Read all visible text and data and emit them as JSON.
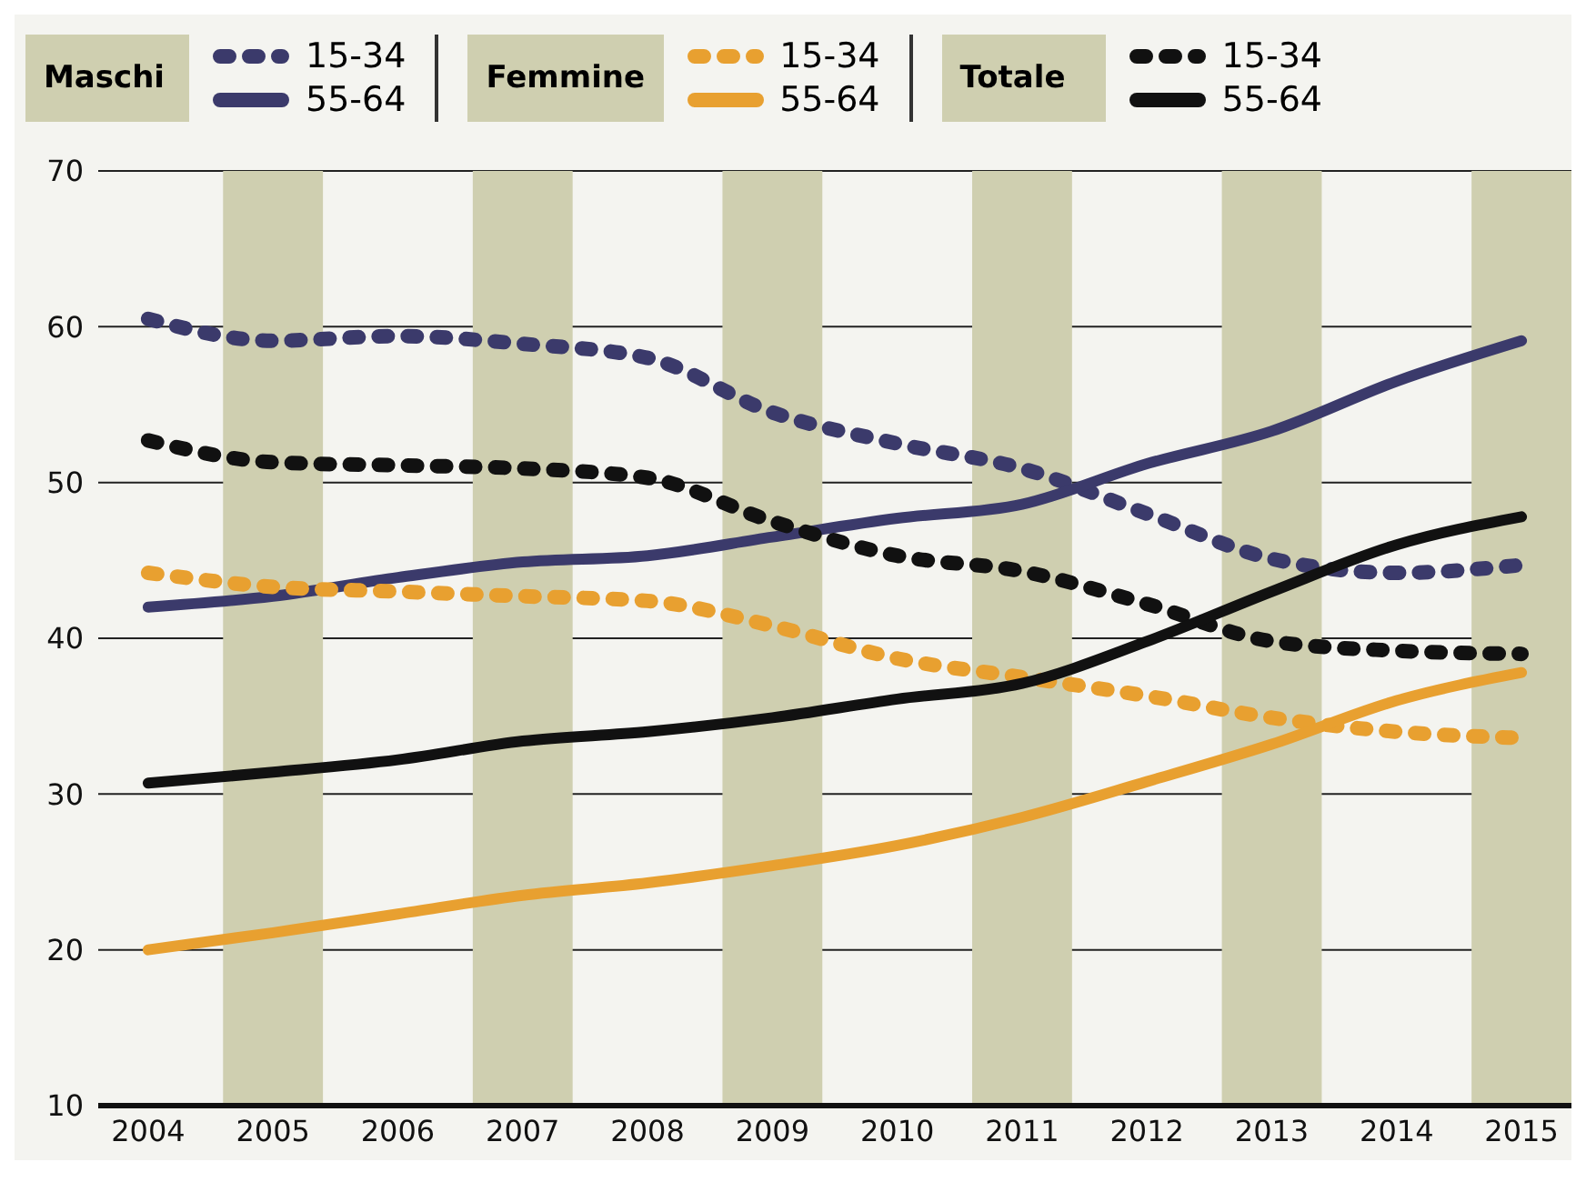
{
  "chart_data": {
    "type": "line",
    "x": [
      2004,
      2005,
      2006,
      2007,
      2008,
      2009,
      2010,
      2011,
      2012,
      2013,
      2014,
      2015
    ],
    "xlim": [
      2003.6,
      2015.4
    ],
    "xticks": [
      2004,
      2005,
      2006,
      2007,
      2008,
      2009,
      2010,
      2011,
      2012,
      2013,
      2014,
      2015
    ],
    "ylim": [
      10,
      70
    ],
    "yticks": [
      10,
      20,
      30,
      40,
      50,
      60,
      70
    ],
    "grid": "y",
    "legend": "top",
    "marker": "none",
    "annotations": [
      "Maschi",
      "Femmine",
      "Totale"
    ],
    "bands": [
      {
        "axis": "x",
        "from": 2004.6,
        "to": 2005.4,
        "color": "#cfcfb0"
      },
      {
        "axis": "x",
        "from": 2006.6,
        "to": 2007.4,
        "color": "#cfcfb0"
      },
      {
        "axis": "x",
        "from": 2008.6,
        "to": 2009.4,
        "color": "#cfcfb0"
      },
      {
        "axis": "x",
        "from": 2010.6,
        "to": 2011.4,
        "color": "#cfcfb0"
      },
      {
        "axis": "x",
        "from": 2012.6,
        "to": 2013.4,
        "color": "#cfcfb0"
      },
      {
        "axis": "x",
        "from": 2014.6,
        "to": 2015.4,
        "color": "#cfcfb0"
      }
    ],
    "series": [
      {
        "name": "15-34",
        "color": "#3b3a6b",
        "line_style": "dashed",
        "values": [
          60.5,
          59.1,
          59.4,
          58.9,
          58,
          54.5,
          52.5,
          50.9,
          48,
          45.1,
          44.2,
          44.7
        ]
      },
      {
        "name": "55-64",
        "color": "#3b3a6b",
        "line_style": "solid",
        "values": [
          42,
          42.7,
          43.9,
          44.9,
          45.3,
          46.5,
          47.7,
          48.6,
          51.2,
          53.3,
          56.5,
          59.1
        ]
      },
      {
        "name": "15-34",
        "color": "#e8a030",
        "line_style": "dashed",
        "values": [
          44.2,
          43.3,
          43,
          42.7,
          42.4,
          40.8,
          38.7,
          37.5,
          36.3,
          34.9,
          34,
          33.6
        ]
      },
      {
        "name": "55-64",
        "color": "#e8a030",
        "line_style": "solid",
        "values": [
          20,
          21.1,
          22.3,
          23.5,
          24.3,
          25.4,
          26.7,
          28.5,
          30.8,
          33.2,
          36,
          37.8
        ]
      },
      {
        "name": "15-34",
        "color": "#111111",
        "line_style": "dashed",
        "values": [
          52.7,
          51.3,
          51.1,
          50.9,
          50.3,
          47.5,
          45.3,
          44.3,
          42.2,
          39.8,
          39.2,
          39
        ]
      },
      {
        "name": "55-64",
        "color": "#111111",
        "line_style": "solid",
        "values": [
          30.7,
          31.4,
          32.2,
          33.4,
          34,
          34.9,
          36.1,
          37.1,
          39.8,
          43,
          46,
          47.8
        ]
      }
    ]
  }
}
